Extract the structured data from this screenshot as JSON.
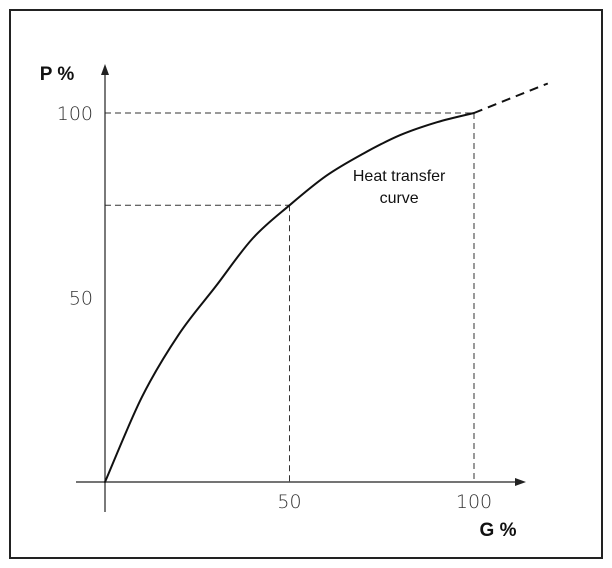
{
  "chart_data": {
    "type": "line",
    "title": "",
    "xlabel": "G %",
    "ylabel": "P %",
    "xlim": [
      0,
      120
    ],
    "ylim": [
      0,
      120
    ],
    "xticks": [
      {
        "value": 50,
        "label": "50"
      },
      {
        "value": 100,
        "label": "100"
      }
    ],
    "yticks": [
      {
        "value": 50,
        "label": "50"
      },
      {
        "value": 100,
        "label": "100"
      }
    ],
    "grid": false,
    "series": [
      {
        "style": "solid",
        "color": "#111111",
        "x": [
          0,
          10,
          20,
          30,
          40,
          50,
          60,
          70,
          80,
          90,
          100
        ],
        "y": [
          0,
          23,
          40,
          53,
          66,
          75,
          83,
          89,
          94,
          97.5,
          100
        ]
      },
      {
        "style": "dashed",
        "color": "#111111",
        "x": [
          100,
          110,
          120
        ],
        "y": [
          100,
          104,
          108
        ]
      }
    ],
    "reference_lines": [
      {
        "x": 50,
        "y": 75
      },
      {
        "x": 100,
        "y": 100
      }
    ],
    "annotations": [
      {
        "lines": [
          "Heat transfer",
          "curve"
        ],
        "x": 77,
        "y": 80
      }
    ]
  }
}
